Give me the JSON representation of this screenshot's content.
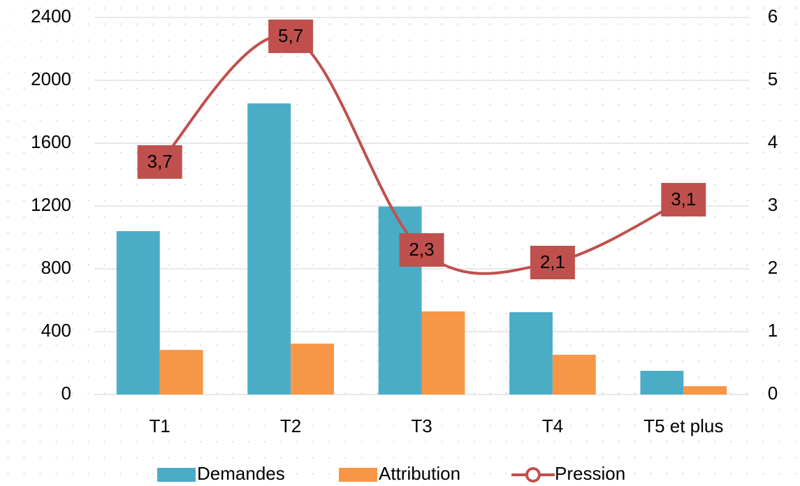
{
  "chart_data": {
    "type": "bar-line",
    "categories": [
      "T1",
      "T2",
      "T3",
      "T4",
      "T5 et plus"
    ],
    "series": [
      {
        "name": "Demandes",
        "color": "#4bacc6",
        "type": "bar",
        "values": [
          1040,
          1853,
          1196,
          524,
          151
        ]
      },
      {
        "name": "Attribution",
        "color": "#f79646",
        "type": "bar",
        "values": [
          284,
          324,
          529,
          253,
          53
        ]
      },
      {
        "name": "Pression",
        "color": "#c0504d",
        "type": "line",
        "axis": "y2",
        "values": [
          3.7,
          5.7,
          2.3,
          2.1,
          3.1
        ],
        "value_labels": [
          "3,7",
          "5,7",
          "2,3",
          "2,1",
          "3,1"
        ]
      }
    ],
    "ylim": [
      0,
      2400
    ],
    "yticks": [
      0,
      400,
      800,
      1200,
      1600,
      2000,
      2400
    ],
    "y2lim": [
      0,
      6
    ],
    "y2ticks": [
      0,
      1,
      2,
      3,
      4,
      5,
      6
    ],
    "grid": true,
    "legend": "bottom"
  }
}
